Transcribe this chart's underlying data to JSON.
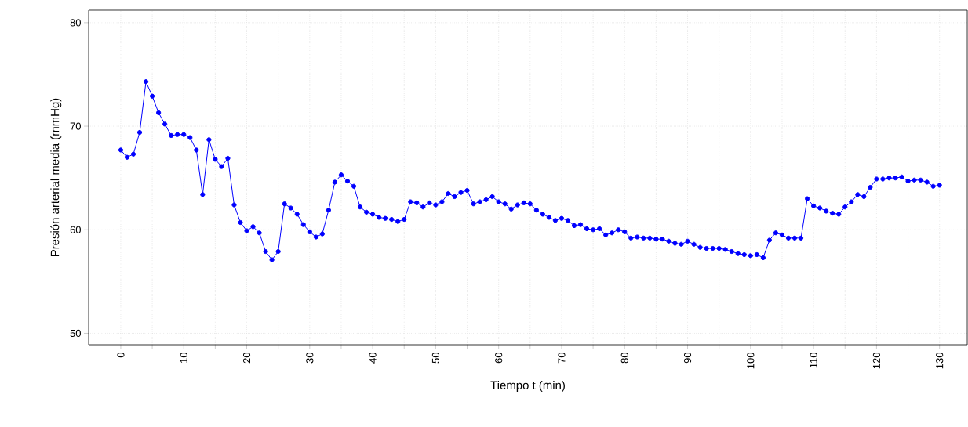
{
  "chart_data": {
    "type": "line",
    "xlabel": "Tiempo t (min)",
    "ylabel": "Presión arterial media (mmHg)",
    "x": [
      0,
      1,
      2,
      3,
      4,
      5,
      6,
      7,
      8,
      9,
      10,
      11,
      12,
      13,
      14,
      15,
      16,
      17,
      18,
      19,
      20,
      21,
      22,
      23,
      24,
      25,
      26,
      27,
      28,
      29,
      30,
      31,
      32,
      33,
      34,
      35,
      36,
      37,
      38,
      39,
      40,
      41,
      42,
      43,
      44,
      45,
      46,
      47,
      48,
      49,
      50,
      51,
      52,
      53,
      54,
      55,
      56,
      57,
      58,
      59,
      60,
      61,
      62,
      63,
      64,
      65,
      66,
      67,
      68,
      69,
      70,
      71,
      72,
      73,
      74,
      75,
      76,
      77,
      78,
      79,
      80,
      81,
      82,
      83,
      84,
      85,
      86,
      87,
      88,
      89,
      90,
      91,
      92,
      93,
      94,
      95,
      96,
      97,
      98,
      99,
      100,
      101,
      102,
      103,
      104,
      105,
      106,
      107,
      108,
      109,
      110,
      111,
      112,
      113,
      114,
      115,
      116,
      117,
      118,
      119,
      120,
      121,
      122,
      123,
      124,
      125,
      126,
      127,
      128,
      129,
      130
    ],
    "series": [
      {
        "color": "#0000ff",
        "values": [
          67.7,
          67.0,
          67.3,
          69.4,
          74.3,
          72.9,
          71.3,
          70.2,
          69.1,
          69.2,
          69.2,
          68.9,
          67.7,
          63.4,
          68.7,
          66.8,
          66.1,
          66.9,
          62.4,
          60.7,
          59.9,
          60.3,
          59.7,
          57.9,
          57.1,
          57.9,
          62.5,
          62.1,
          61.5,
          60.5,
          59.8,
          59.3,
          59.6,
          61.9,
          64.6,
          65.3,
          64.7,
          64.2,
          62.2,
          61.7,
          61.5,
          61.2,
          61.1,
          61.0,
          60.8,
          61.0,
          62.7,
          62.6,
          62.2,
          62.6,
          62.4,
          62.7,
          63.5,
          63.2,
          63.6,
          63.8,
          62.5,
          62.7,
          62.9,
          63.2,
          62.7,
          62.5,
          62.0,
          62.4,
          62.6,
          62.5,
          61.9,
          61.5,
          61.2,
          60.9,
          61.1,
          60.9,
          60.4,
          60.5,
          60.1,
          60.0,
          60.1,
          59.5,
          59.7,
          60.0,
          59.8,
          59.2,
          59.3,
          59.2,
          59.2,
          59.1,
          59.1,
          58.9,
          58.7,
          58.6,
          58.9,
          58.6,
          58.3,
          58.2,
          58.2,
          58.2,
          58.1,
          57.9,
          57.7,
          57.6,
          57.5,
          57.6,
          57.3,
          59.0,
          59.7,
          59.5,
          59.2,
          59.2,
          59.2,
          63.0,
          62.3,
          62.1,
          61.8,
          61.6,
          61.5,
          62.2,
          62.7,
          63.4,
          63.2,
          64.1,
          64.9,
          64.9,
          65.0,
          65.0,
          65.1,
          64.7,
          64.8,
          64.8,
          64.6,
          64.2,
          64.3
        ]
      }
    ],
    "xlim": [
      -5.1,
      134.4
    ],
    "ylim": [
      48.9,
      81.2
    ],
    "xticks": [
      0,
      {
        "value": 5,
        "label": null
      },
      10,
      {
        "value": 15,
        "label": null
      },
      20,
      {
        "value": 25,
        "label": null
      },
      30,
      {
        "value": 35,
        "label": null
      },
      40,
      {
        "value": 45,
        "label": null
      },
      50,
      {
        "value": 55,
        "label": null
      },
      60,
      {
        "value": 65,
        "label": null
      },
      70,
      {
        "value": 75,
        "label": null
      },
      80,
      {
        "value": 85,
        "label": null
      },
      90,
      {
        "value": 95,
        "label": null
      },
      100,
      {
        "value": 105,
        "label": null
      },
      110,
      {
        "value": 115,
        "label": null
      },
      120,
      {
        "value": 125,
        "label": null
      },
      130
    ],
    "yticks": [
      50,
      60,
      70,
      80
    ],
    "grid": true,
    "marker": "circle",
    "line_style": "solid"
  }
}
